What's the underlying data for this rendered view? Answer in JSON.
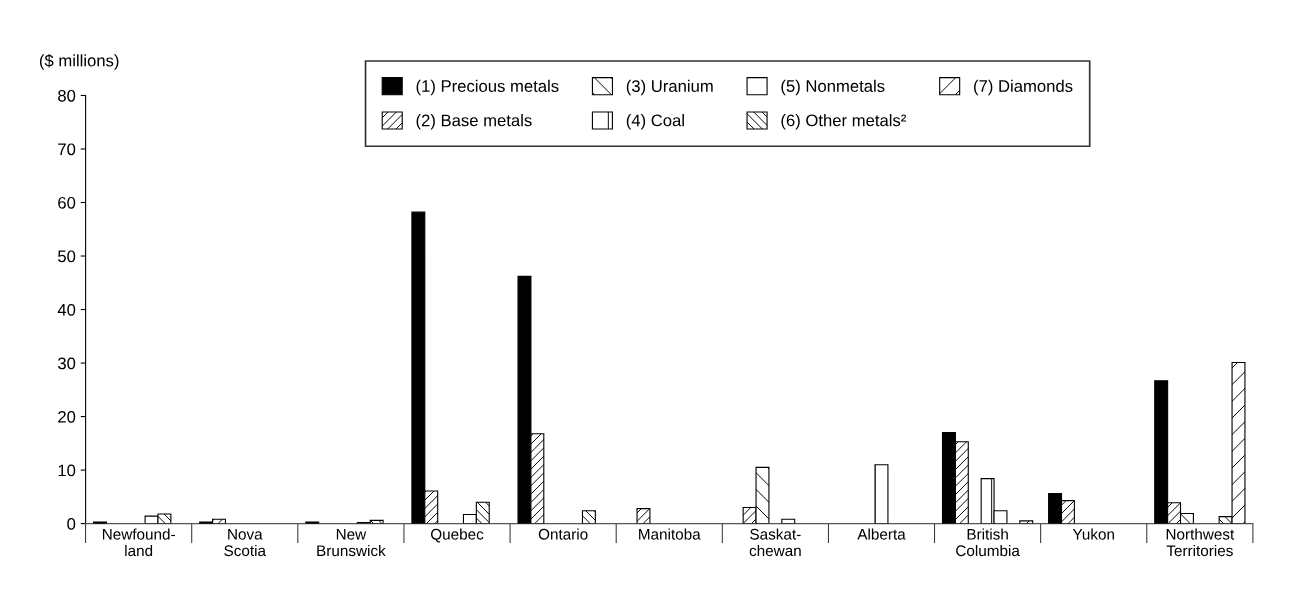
{
  "chart_data": {
    "type": "bar",
    "ylabel": "($ millions)",
    "categories": [
      "Newfound-\nland",
      "Nova\nScotia",
      "New\nBrunswick",
      "Quebec",
      "Ontario",
      "Manitoba",
      "Saskat-\nchewan",
      "Alberta",
      "British\nColumbia",
      "Yukon",
      "Northwest\nTerritories"
    ],
    "series": [
      {
        "name": "(1) Precious metals",
        "color": "#000000",
        "values": [
          0.3,
          0.3,
          0.3,
          58.2,
          46.2,
          null,
          null,
          null,
          17.0,
          5.6,
          26.7
        ]
      },
      {
        "name": "(2) Base metals",
        "color": "#ffffff",
        "values": [
          null,
          0.8,
          null,
          6.1,
          16.8,
          2.8,
          3.0,
          null,
          15.3,
          4.3,
          3.9
        ]
      },
      {
        "name": "(3) Uranium",
        "color": "#ffffff",
        "values": [
          null,
          null,
          null,
          null,
          null,
          null,
          10.5,
          null,
          null,
          null,
          1.9
        ]
      },
      {
        "name": "(4) Coal",
        "color": "#ffffff",
        "values": [
          null,
          null,
          null,
          null,
          null,
          null,
          null,
          11.0,
          8.4,
          null,
          null
        ]
      },
      {
        "name": "(5) Nonmetals",
        "color": "#ffffff",
        "values": [
          1.4,
          null,
          0.2,
          1.7,
          null,
          null,
          0.8,
          null,
          2.4,
          null,
          null
        ]
      },
      {
        "name": "(6) Other metals²",
        "color": "#ffffff",
        "values": [
          1.8,
          null,
          0.6,
          4.0,
          2.4,
          null,
          null,
          null,
          null,
          null,
          1.3
        ]
      },
      {
        "name": "(7) Diamonds",
        "color": "#ffffff",
        "values": [
          null,
          null,
          null,
          null,
          null,
          null,
          null,
          null,
          0.5,
          null,
          30.1
        ]
      }
    ],
    "ylim": [
      0,
      80
    ],
    "yticks": [
      0,
      10,
      20,
      30,
      40,
      50,
      60,
      70,
      80
    ],
    "grid": false,
    "legend": "top"
  }
}
